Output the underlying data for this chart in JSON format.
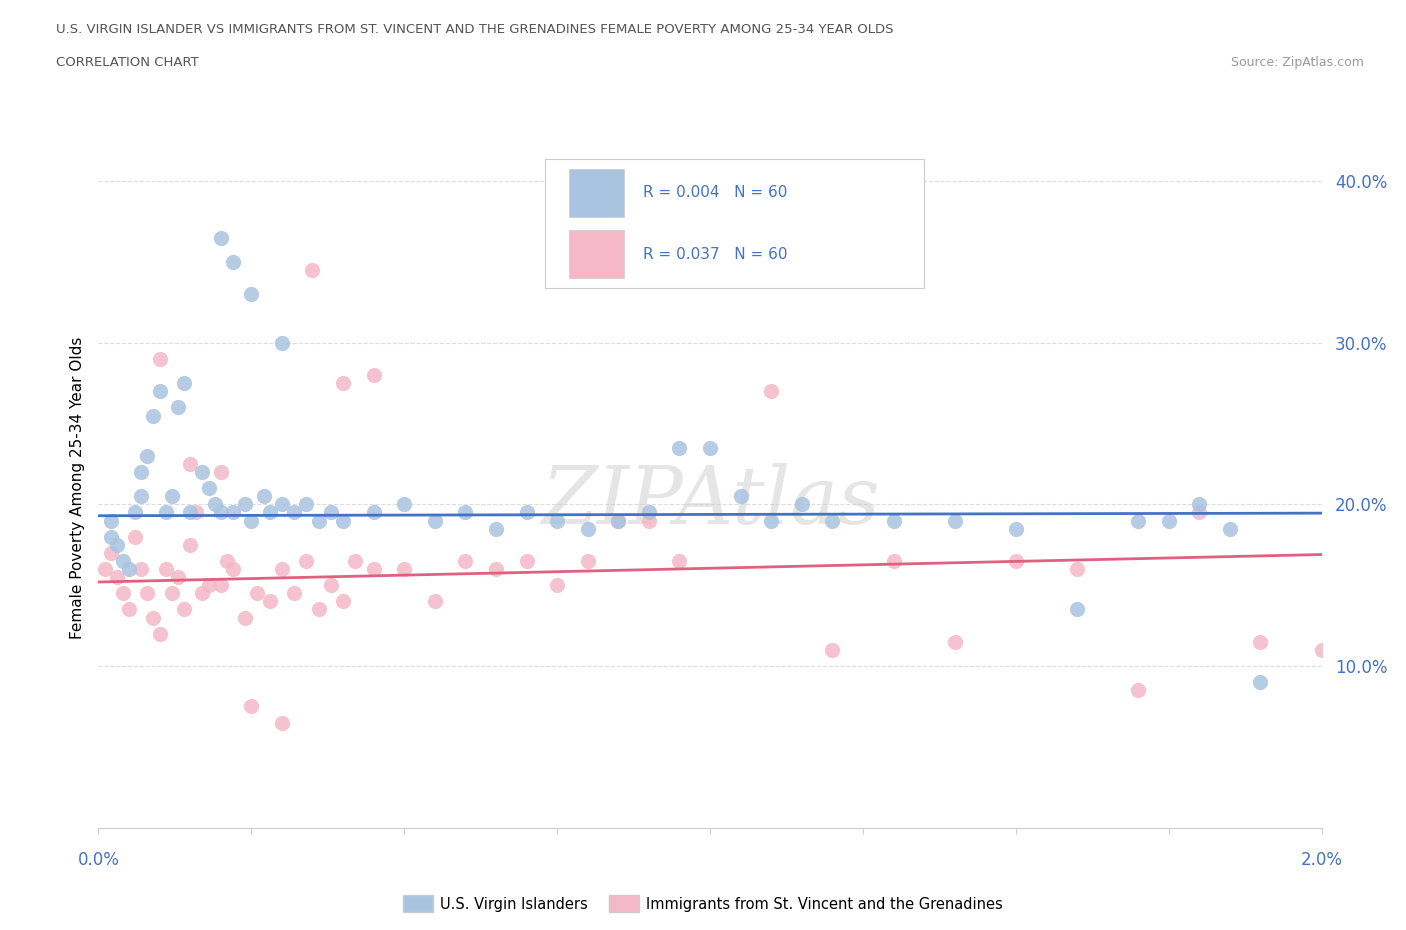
{
  "title_line1": "U.S. VIRGIN ISLANDER VS IMMIGRANTS FROM ST. VINCENT AND THE GRENADINES FEMALE POVERTY AMONG 25-34 YEAR OLDS",
  "title_line2": "CORRELATION CHART",
  "source_text": "Source: ZipAtlas.com",
  "ylabel": "Female Poverty Among 25-34 Year Olds",
  "xmin": 0.0,
  "xmax": 2.0,
  "ymin": 0.0,
  "ymax": 42.0,
  "yticks": [
    10.0,
    20.0,
    30.0,
    40.0
  ],
  "blue_color": "#a8c4e0",
  "blue_line_color": "#4472c4",
  "pink_color": "#f4b8c8",
  "pink_line_color": "#e06080",
  "watermark": "ZIPAtlas",
  "blue_scatter_x": [
    0.02,
    0.02,
    0.03,
    0.04,
    0.05,
    0.06,
    0.07,
    0.07,
    0.08,
    0.09,
    0.1,
    0.11,
    0.12,
    0.13,
    0.14,
    0.15,
    0.17,
    0.18,
    0.19,
    0.2,
    0.22,
    0.24,
    0.25,
    0.27,
    0.28,
    0.3,
    0.32,
    0.34,
    0.36,
    0.38,
    0.4,
    0.45,
    0.5,
    0.55,
    0.6,
    0.65,
    0.7,
    0.75,
    0.8,
    0.85,
    0.9,
    0.95,
    1.0,
    1.05,
    1.1,
    1.15,
    1.2,
    1.3,
    1.4,
    1.5,
    1.6,
    1.7,
    1.75,
    1.8,
    1.85,
    1.9,
    0.2,
    0.22,
    0.25,
    0.3
  ],
  "blue_scatter_y": [
    19.0,
    18.0,
    17.5,
    16.5,
    16.0,
    19.5,
    20.5,
    22.0,
    23.0,
    25.5,
    27.0,
    19.5,
    20.5,
    26.0,
    27.5,
    19.5,
    22.0,
    21.0,
    20.0,
    19.5,
    19.5,
    20.0,
    19.0,
    20.5,
    19.5,
    20.0,
    19.5,
    20.0,
    19.0,
    19.5,
    19.0,
    19.5,
    20.0,
    19.0,
    19.5,
    18.5,
    19.5,
    19.0,
    18.5,
    19.0,
    19.5,
    23.5,
    23.5,
    20.5,
    19.0,
    20.0,
    19.0,
    19.0,
    19.0,
    18.5,
    13.5,
    19.0,
    19.0,
    20.0,
    18.5,
    9.0,
    36.5,
    35.0,
    33.0,
    30.0
  ],
  "pink_scatter_x": [
    0.01,
    0.02,
    0.03,
    0.04,
    0.05,
    0.06,
    0.07,
    0.08,
    0.09,
    0.1,
    0.11,
    0.12,
    0.13,
    0.14,
    0.15,
    0.16,
    0.17,
    0.18,
    0.2,
    0.21,
    0.22,
    0.24,
    0.26,
    0.28,
    0.3,
    0.32,
    0.34,
    0.36,
    0.38,
    0.4,
    0.42,
    0.45,
    0.5,
    0.55,
    0.6,
    0.65,
    0.7,
    0.75,
    0.8,
    0.85,
    0.9,
    0.95,
    1.1,
    1.2,
    1.3,
    1.4,
    1.5,
    1.6,
    1.7,
    1.8,
    1.9,
    2.0,
    0.1,
    0.15,
    0.2,
    0.25,
    0.3,
    0.35,
    0.4,
    0.45
  ],
  "pink_scatter_y": [
    16.0,
    17.0,
    15.5,
    14.5,
    13.5,
    18.0,
    16.0,
    14.5,
    13.0,
    12.0,
    16.0,
    14.5,
    15.5,
    13.5,
    17.5,
    19.5,
    14.5,
    15.0,
    15.0,
    16.5,
    16.0,
    13.0,
    14.5,
    14.0,
    16.0,
    14.5,
    16.5,
    13.5,
    15.0,
    14.0,
    16.5,
    16.0,
    16.0,
    14.0,
    16.5,
    16.0,
    16.5,
    15.0,
    16.5,
    19.0,
    19.0,
    16.5,
    27.0,
    11.0,
    16.5,
    11.5,
    16.5,
    16.0,
    8.5,
    19.5,
    11.5,
    11.0,
    29.0,
    22.5,
    22.0,
    7.5,
    6.5,
    34.5,
    27.5,
    28.0
  ],
  "blue_trend_slope": 0.08,
  "blue_trend_intercept": 19.3,
  "pink_trend_slope": 0.85,
  "pink_trend_intercept": 15.2,
  "grid_color": "#dddddd",
  "grid_style": "--",
  "background_color": "#ffffff",
  "plot_bg_color": "#ffffff",
  "legend_r_blue": "R = 0.004",
  "legend_n_blue": "N = 60",
  "legend_r_pink": "R = 0.037",
  "legend_n_pink": "N = 60",
  "bottom_label_blue": "U.S. Virgin Islanders",
  "bottom_label_pink": "Immigrants from St. Vincent and the Grenadines"
}
